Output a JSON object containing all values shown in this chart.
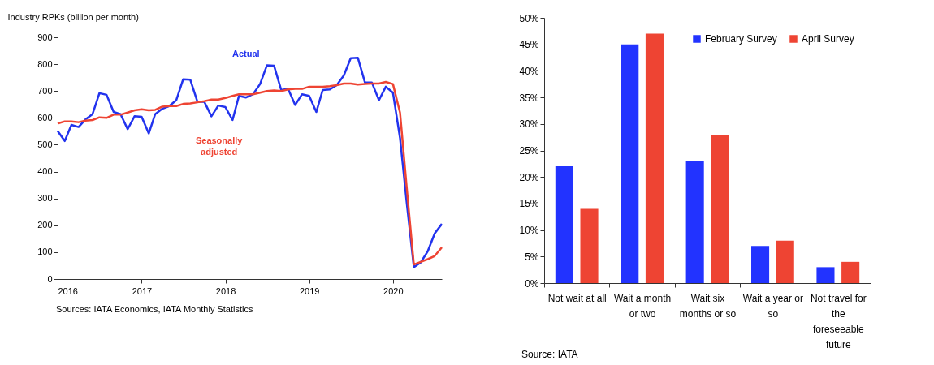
{
  "chart_data": [
    {
      "type": "line",
      "ylabel": "Industry RPKs (billion per month)",
      "x": [
        "2016-01",
        "2016-02",
        "2016-03",
        "2016-04",
        "2016-05",
        "2016-06",
        "2016-07",
        "2016-08",
        "2016-09",
        "2016-10",
        "2016-11",
        "2016-12",
        "2017-01",
        "2017-02",
        "2017-03",
        "2017-04",
        "2017-05",
        "2017-06",
        "2017-07",
        "2017-08",
        "2017-09",
        "2017-10",
        "2017-11",
        "2017-12",
        "2018-01",
        "2018-02",
        "2018-03",
        "2018-04",
        "2018-05",
        "2018-06",
        "2018-07",
        "2018-08",
        "2018-09",
        "2018-10",
        "2018-11",
        "2018-12",
        "2019-01",
        "2019-02",
        "2019-03",
        "2019-04",
        "2019-05",
        "2019-06",
        "2019-07",
        "2019-08",
        "2019-09",
        "2019-10",
        "2019-11",
        "2019-12",
        "2020-01",
        "2020-02",
        "2020-03",
        "2020-04",
        "2020-05",
        "2020-06",
        "2020-07",
        "2020-08"
      ],
      "series": [
        {
          "name": "Actual",
          "color": "#2233ee",
          "values": [
            551,
            514,
            574,
            566,
            594,
            614,
            692,
            686,
            622,
            614,
            558,
            606,
            604,
            542,
            614,
            634,
            644,
            666,
            744,
            742,
            660,
            660,
            606,
            646,
            640,
            592,
            682,
            676,
            688,
            726,
            796,
            794,
            704,
            708,
            648,
            688,
            682,
            622,
            704,
            706,
            722,
            758,
            822,
            824,
            732,
            732,
            666,
            716,
            694,
            524,
            284,
            44,
            62,
            104,
            170,
            205
          ]
        },
        {
          "name": "Seasonally adjusted",
          "color": "#ee4433",
          "values": [
            579,
            587,
            587,
            584,
            590,
            592,
            602,
            600,
            612,
            612,
            620,
            628,
            632,
            628,
            630,
            642,
            644,
            644,
            652,
            654,
            658,
            662,
            668,
            668,
            674,
            682,
            688,
            688,
            688,
            694,
            700,
            702,
            700,
            706,
            708,
            708,
            716,
            716,
            716,
            718,
            722,
            728,
            728,
            724,
            726,
            728,
            728,
            734,
            726,
            619,
            340,
            54,
            64,
            74,
            86,
            118
          ]
        }
      ],
      "xlim": [
        "2016-01",
        "2020-08"
      ],
      "xticks": [
        "2016",
        "2017",
        "2018",
        "2019",
        "2020"
      ],
      "ylim": [
        0,
        900
      ],
      "yticks": [
        0,
        100,
        200,
        300,
        400,
        500,
        600,
        700,
        800,
        900
      ],
      "grid": false,
      "legend": false,
      "annotations": [
        "Sources: IATA Economics, IATA Monthly Statistics"
      ]
    },
    {
      "type": "bar",
      "categories": [
        "Not wait at all",
        "Wait a month or two",
        "Wait six months or so",
        "Wait a year or so",
        "Not travel for the foreseeable future"
      ],
      "series": [
        {
          "name": "February Survey",
          "color": "#2233ff",
          "values": [
            22,
            45,
            23,
            7,
            3
          ]
        },
        {
          "name": "April Survey",
          "color": "#ee4433",
          "values": [
            14,
            47,
            28,
            8,
            4
          ]
        }
      ],
      "ylim": [
        0,
        50
      ],
      "yticks": [
        {
          "value": 0,
          "label": "0%"
        },
        {
          "value": 5,
          "label": "5%"
        },
        {
          "value": 10,
          "label": "10%"
        },
        {
          "value": 15,
          "label": "15%"
        },
        {
          "value": 20,
          "label": "20%"
        },
        {
          "value": 25,
          "label": "25%"
        },
        {
          "value": 30,
          "label": "30%"
        },
        {
          "value": 35,
          "label": "35%"
        },
        {
          "value": 40,
          "label": "40%"
        },
        {
          "value": 45,
          "label": "45%"
        },
        {
          "value": 50,
          "label": "50%"
        }
      ],
      "grid": false,
      "legend": "top right",
      "annotations": [
        "Source: IATA"
      ]
    }
  ]
}
